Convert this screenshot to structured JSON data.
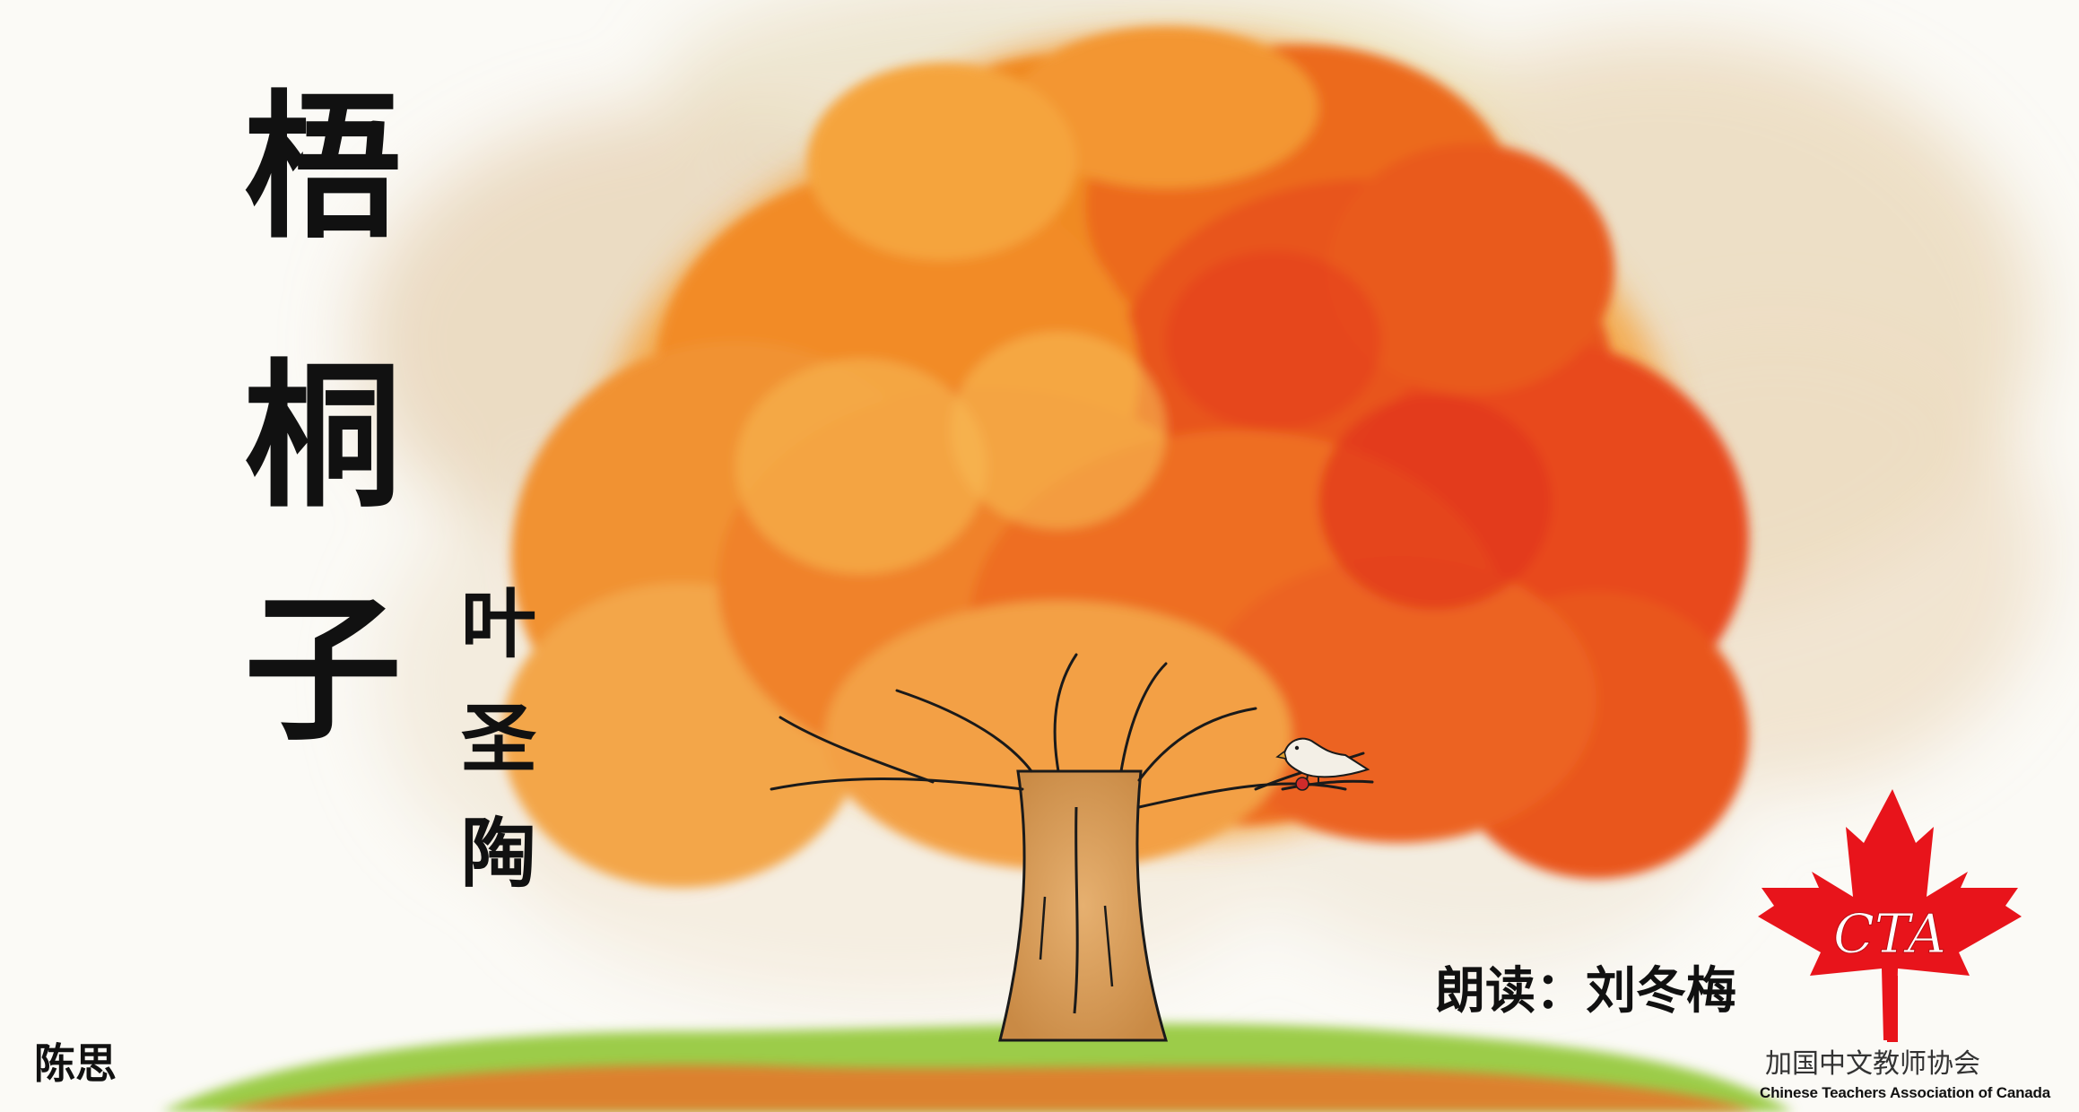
{
  "title": [
    "梧",
    "桐",
    "子"
  ],
  "author": [
    "叶",
    "圣",
    "陶"
  ],
  "reader": "朗读：刘冬梅",
  "artist": "陈思",
  "logo": {
    "monogram": "CTA",
    "name_cn": "加国中文教师协会",
    "name_en": "Chinese Teachers Association of Canada"
  },
  "colors": {
    "maple_leaf": "#e8141b",
    "foliage_orange": "#f07a1c",
    "foliage_red": "#e8401c",
    "grass": "#8cc63f",
    "trunk": "#d9a05a"
  }
}
